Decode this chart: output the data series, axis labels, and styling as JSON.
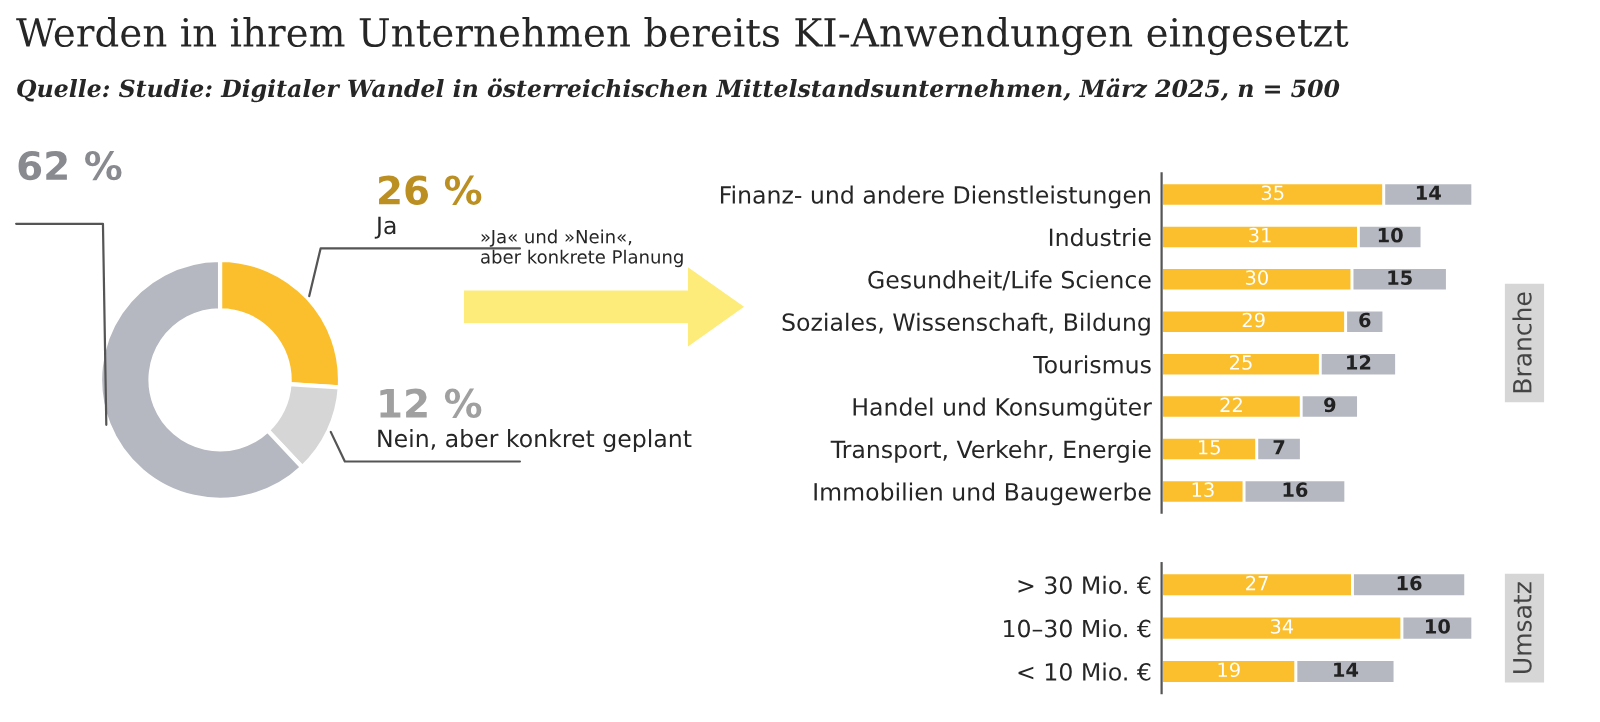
{
  "chart_data": [
    {
      "type": "donut",
      "title": "Werden in ihrem Unternehmen bereits KI-Anwendungen eingesetzt",
      "subtitle": "Quelle: Studie: Digitaler Wandel in österreichischen Mittelstandsunternehmen, März 2025, n = 500",
      "categories": [
        "Ja",
        "Nein, aber konkret geplant",
        null
      ],
      "values": [
        26,
        12,
        62
      ],
      "colors": [
        "#fbbf2e",
        "#d6d6d6",
        "#b5b8c0"
      ],
      "value_labels": [
        "26 %",
        "12 %",
        "62 %"
      ],
      "annotations": [
        "»Ja« und »Nein«,\naber konkrete Planung"
      ]
    },
    {
      "type": "bar",
      "orientation": "horizontal",
      "stacked": true,
      "data_labels": true,
      "ylabel": "Branche",
      "categories": [
        "Finanz- und andere Dienstleistungen",
        "Industrie",
        "Gesundheit/Life Science",
        "Soziales, Wissenschaft, Bildung",
        "Tourismus",
        "Handel und Konsumgüter",
        "Transport, Verkehr, Energie",
        "Immobilien und Baugewerbe"
      ],
      "series": [
        {
          "color": "#fbbf2e",
          "values": [
            35,
            31,
            30,
            29,
            25,
            22,
            15,
            13
          ]
        },
        {
          "color": "#b5b8c0",
          "values": [
            14,
            10,
            15,
            6,
            12,
            9,
            7,
            16
          ]
        }
      ]
    },
    {
      "type": "bar",
      "orientation": "horizontal",
      "stacked": true,
      "data_labels": true,
      "ylabel": "Umsatz",
      "categories": [
        "> 30 Mio. €",
        "10–30 Mio. €",
        "< 10 Mio. €"
      ],
      "series": [
        {
          "color": "#fbbf2e",
          "values": [
            27,
            34,
            19
          ]
        },
        {
          "color": "#b5b8c0",
          "values": [
            16,
            10,
            14
          ]
        }
      ]
    }
  ]
}
